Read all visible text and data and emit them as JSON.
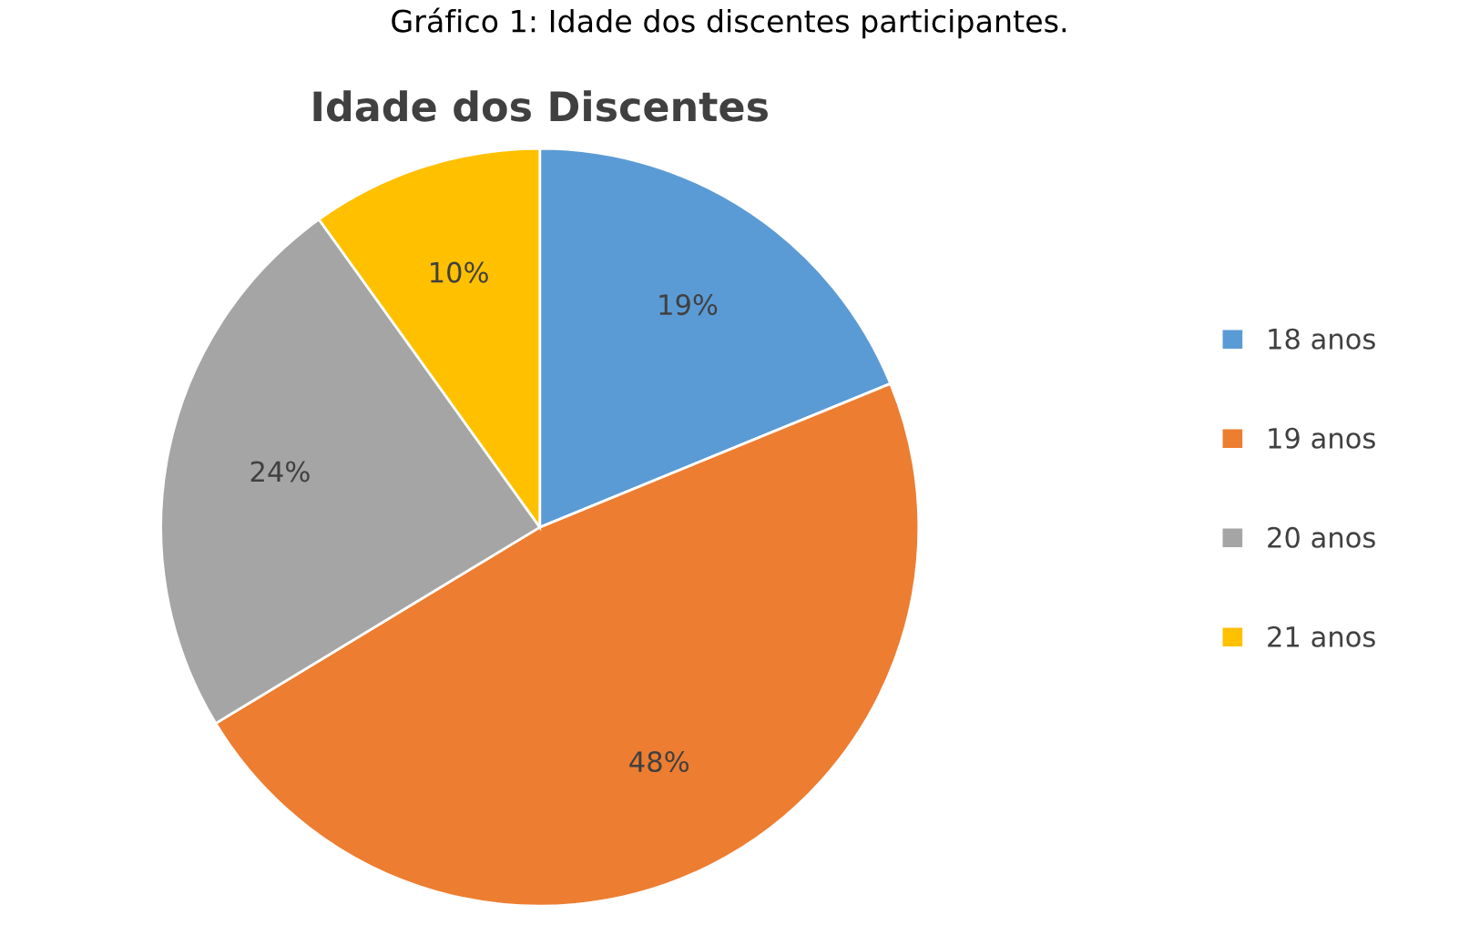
{
  "chart_data": {
    "type": "pie",
    "title": "Idade dos Discentes",
    "annotations": [
      "Gráfico 1: Idade dos discentes participantes."
    ],
    "categories": [
      "18 anos",
      "19 anos",
      "20 anos",
      "21 anos"
    ],
    "values": [
      19,
      48,
      24,
      10
    ],
    "colors": [
      "#5b9bd5",
      "#ed7d31",
      "#a5a5a5",
      "#ffc000"
    ],
    "value_labels": [
      "19%",
      "48%",
      "24%",
      "10%"
    ],
    "legend": "right"
  }
}
